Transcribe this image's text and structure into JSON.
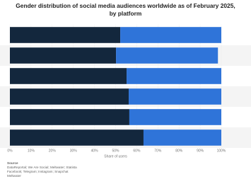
{
  "chart_data": {
    "type": "stacked-bar-horizontal",
    "title": "Gender distribution of social media audiences worldwide as of February 2025, by platform",
    "categories": [
      null,
      null,
      null,
      null,
      null,
      null
    ],
    "series": [
      {
        "color": "#13273d",
        "values": [
          52.2,
          50.2,
          55.2,
          56.2,
          56.5,
          63.2
        ]
      },
      {
        "color": "#2f74d9",
        "values": [
          47.8,
          48.2,
          44.8,
          43.8,
          43.5,
          36.8
        ]
      }
    ],
    "xlabel": "Share of users",
    "xlim": [
      0,
      100
    ],
    "xticks": [
      {
        "value": 0,
        "label": "0%"
      },
      {
        "value": 10,
        "label": "10%"
      },
      {
        "value": 20,
        "label": "20%"
      },
      {
        "value": 30,
        "label": "30%"
      },
      {
        "value": 40,
        "label": "40%"
      },
      {
        "value": 50,
        "label": "50%"
      },
      {
        "value": 60,
        "label": "60%"
      },
      {
        "value": 70,
        "label": "70%"
      },
      {
        "value": 80,
        "label": "80%"
      },
      {
        "value": 90,
        "label": "90%"
      },
      {
        "value": 100,
        "label": "100%"
      }
    ],
    "source_heading": "Source",
    "source_lines": [
      "DataReportal; We Are Social; Meltwater; Statista",
      "Facebook; Telegram; Instagram; Snapchat",
      "Meltwater"
    ]
  }
}
